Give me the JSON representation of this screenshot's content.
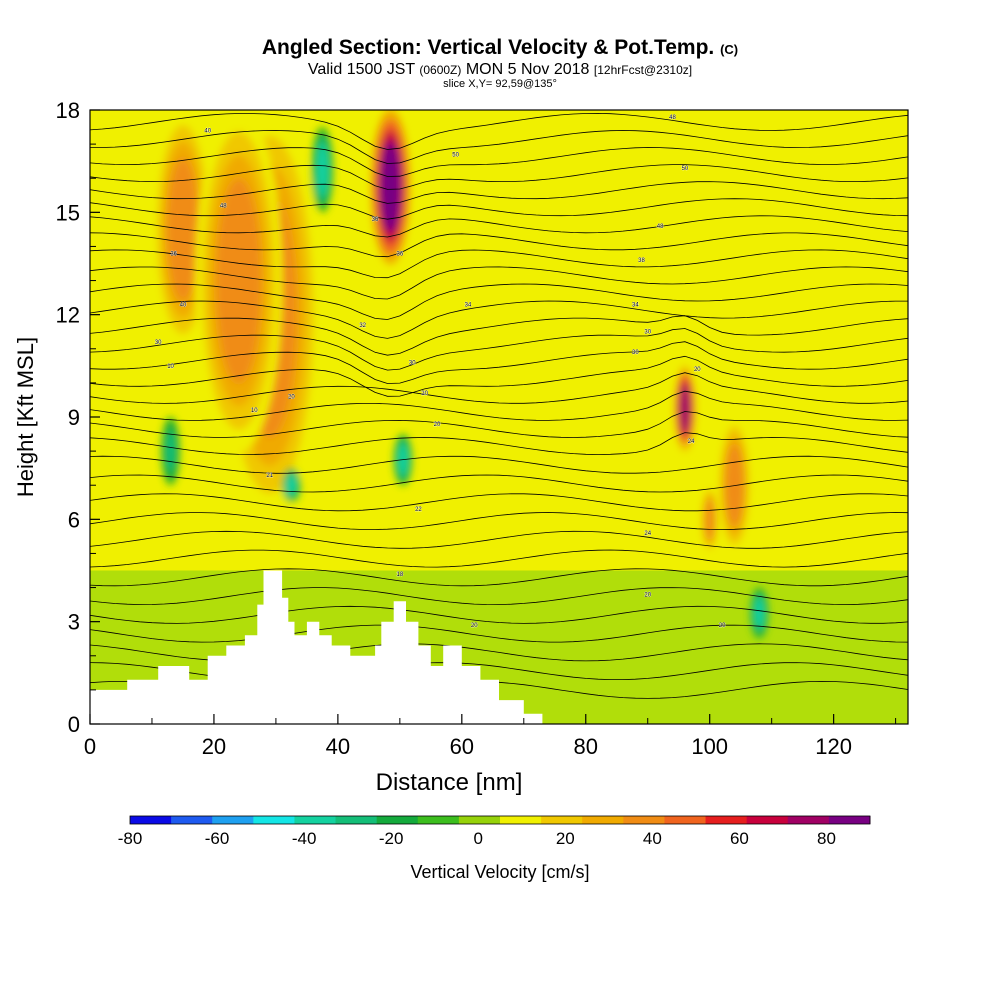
{
  "chart_data": {
    "type": "heatmap",
    "title": "Angled Section: Vertical Velocity & Pot.Temp.",
    "title_units": "(C)",
    "subtitle_prefix": "Valid 1500 JST",
    "subtitle_utc": "(0600Z)",
    "subtitle_date": "MON 5 Nov 2018",
    "subtitle_fcst": "[12hrFcst@2310z]",
    "slice_label": "slice X,Y= 92,59@135°",
    "xlabel": "Distance [nm]",
    "ylabel": "Height [Kft MSL]",
    "xlim": [
      0,
      132
    ],
    "ylim": [
      0,
      18
    ],
    "x_ticks": [
      "0",
      "20",
      "40",
      "60",
      "80",
      "100",
      "120"
    ],
    "y_ticks": [
      "0",
      "3",
      "6",
      "9",
      "12",
      "15",
      "18"
    ],
    "colorbar": {
      "label": "Vertical Velocity [cm/s]",
      "tick_labels": [
        "-80",
        "-60",
        "-40",
        "-20",
        "0",
        "20",
        "40",
        "60",
        "80"
      ],
      "range": [
        -80,
        90
      ],
      "colors": [
        "#0a0ae6",
        "#1e5af0",
        "#1ea0f0",
        "#14e6e6",
        "#14d2a0",
        "#14be78",
        "#14aa3c",
        "#3cbe1e",
        "#96d20a",
        "#f0f000",
        "#f0c800",
        "#f0aa00",
        "#f08c14",
        "#f0641e",
        "#e61e1e",
        "#c8003c",
        "#a00064",
        "#780082"
      ]
    },
    "updraft_cells": [
      {
        "x": 48.5,
        "ymin": 13.5,
        "ymax": 18,
        "w_max": 85
      },
      {
        "x": 96,
        "ymin": 8,
        "ymax": 10.5,
        "w_max": 80
      },
      {
        "x": 29,
        "ymin": 6,
        "ymax": 18,
        "w_max": 40
      },
      {
        "x": 15,
        "ymin": 11,
        "ymax": 18,
        "w_max": 35
      },
      {
        "x": 24,
        "ymin": 8,
        "ymax": 18,
        "w_max": 35
      },
      {
        "x": 100,
        "ymin": 5,
        "ymax": 7,
        "w_max": 40
      },
      {
        "x": 104,
        "ymin": 5,
        "ymax": 9,
        "w_max": 35
      }
    ],
    "downdraft_cells": [
      {
        "x": 50.5,
        "ymin": 7,
        "ymax": 8.5,
        "w_min": -40
      },
      {
        "x": 32.5,
        "ymin": 6.5,
        "ymax": 7.5,
        "w_min": -40
      },
      {
        "x": 37.5,
        "ymin": 15,
        "ymax": 17.5,
        "w_min": -35
      },
      {
        "x": 108,
        "ymin": 2.5,
        "ymax": 4,
        "w_min": -35
      },
      {
        "x": 13,
        "ymin": 7,
        "ymax": 9,
        "w_min": -25
      }
    ],
    "isentrope_labels": [
      {
        "text": "48",
        "x": 94,
        "y": 17.8
      },
      {
        "text": "40",
        "x": 19,
        "y": 17.4
      },
      {
        "text": "50",
        "x": 59,
        "y": 16.7
      },
      {
        "text": "50",
        "x": 96,
        "y": 16.3
      },
      {
        "text": "48",
        "x": 21.5,
        "y": 15.2
      },
      {
        "text": "36",
        "x": 46,
        "y": 14.8
      },
      {
        "text": "48",
        "x": 92,
        "y": 14.6
      },
      {
        "text": "36",
        "x": 13.5,
        "y": 13.8
      },
      {
        "text": "36",
        "x": 50,
        "y": 13.8
      },
      {
        "text": "38",
        "x": 89,
        "y": 13.6
      },
      {
        "text": "40",
        "x": 15,
        "y": 12.3
      },
      {
        "text": "34",
        "x": 61,
        "y": 12.3
      },
      {
        "text": "34",
        "x": 88,
        "y": 12.3
      },
      {
        "text": "32",
        "x": 44,
        "y": 11.7
      },
      {
        "text": "30",
        "x": 90,
        "y": 11.5
      },
      {
        "text": "30",
        "x": 11,
        "y": 11.2
      },
      {
        "text": "30",
        "x": 88,
        "y": 10.9
      },
      {
        "text": "30",
        "x": 52,
        "y": 10.6
      },
      {
        "text": "20",
        "x": 98,
        "y": 10.4
      },
      {
        "text": "10",
        "x": 13,
        "y": 10.5
      },
      {
        "text": "20",
        "x": 32.5,
        "y": 9.6
      },
      {
        "text": "20",
        "x": 54,
        "y": 9.7
      },
      {
        "text": "10",
        "x": 26.5,
        "y": 9.2
      },
      {
        "text": "20",
        "x": 56,
        "y": 8.8
      },
      {
        "text": "24",
        "x": 97,
        "y": 8.3
      },
      {
        "text": "21",
        "x": 29,
        "y": 7.3
      },
      {
        "text": "22",
        "x": 53,
        "y": 6.3
      },
      {
        "text": "24",
        "x": 90,
        "y": 5.6
      },
      {
        "text": "18",
        "x": 50,
        "y": 4.4
      },
      {
        "text": "20",
        "x": 90,
        "y": 3.8
      },
      {
        "text": "20",
        "x": 62,
        "y": 2.9
      },
      {
        "text": "20",
        "x": 102,
        "y": 2.9
      }
    ]
  }
}
